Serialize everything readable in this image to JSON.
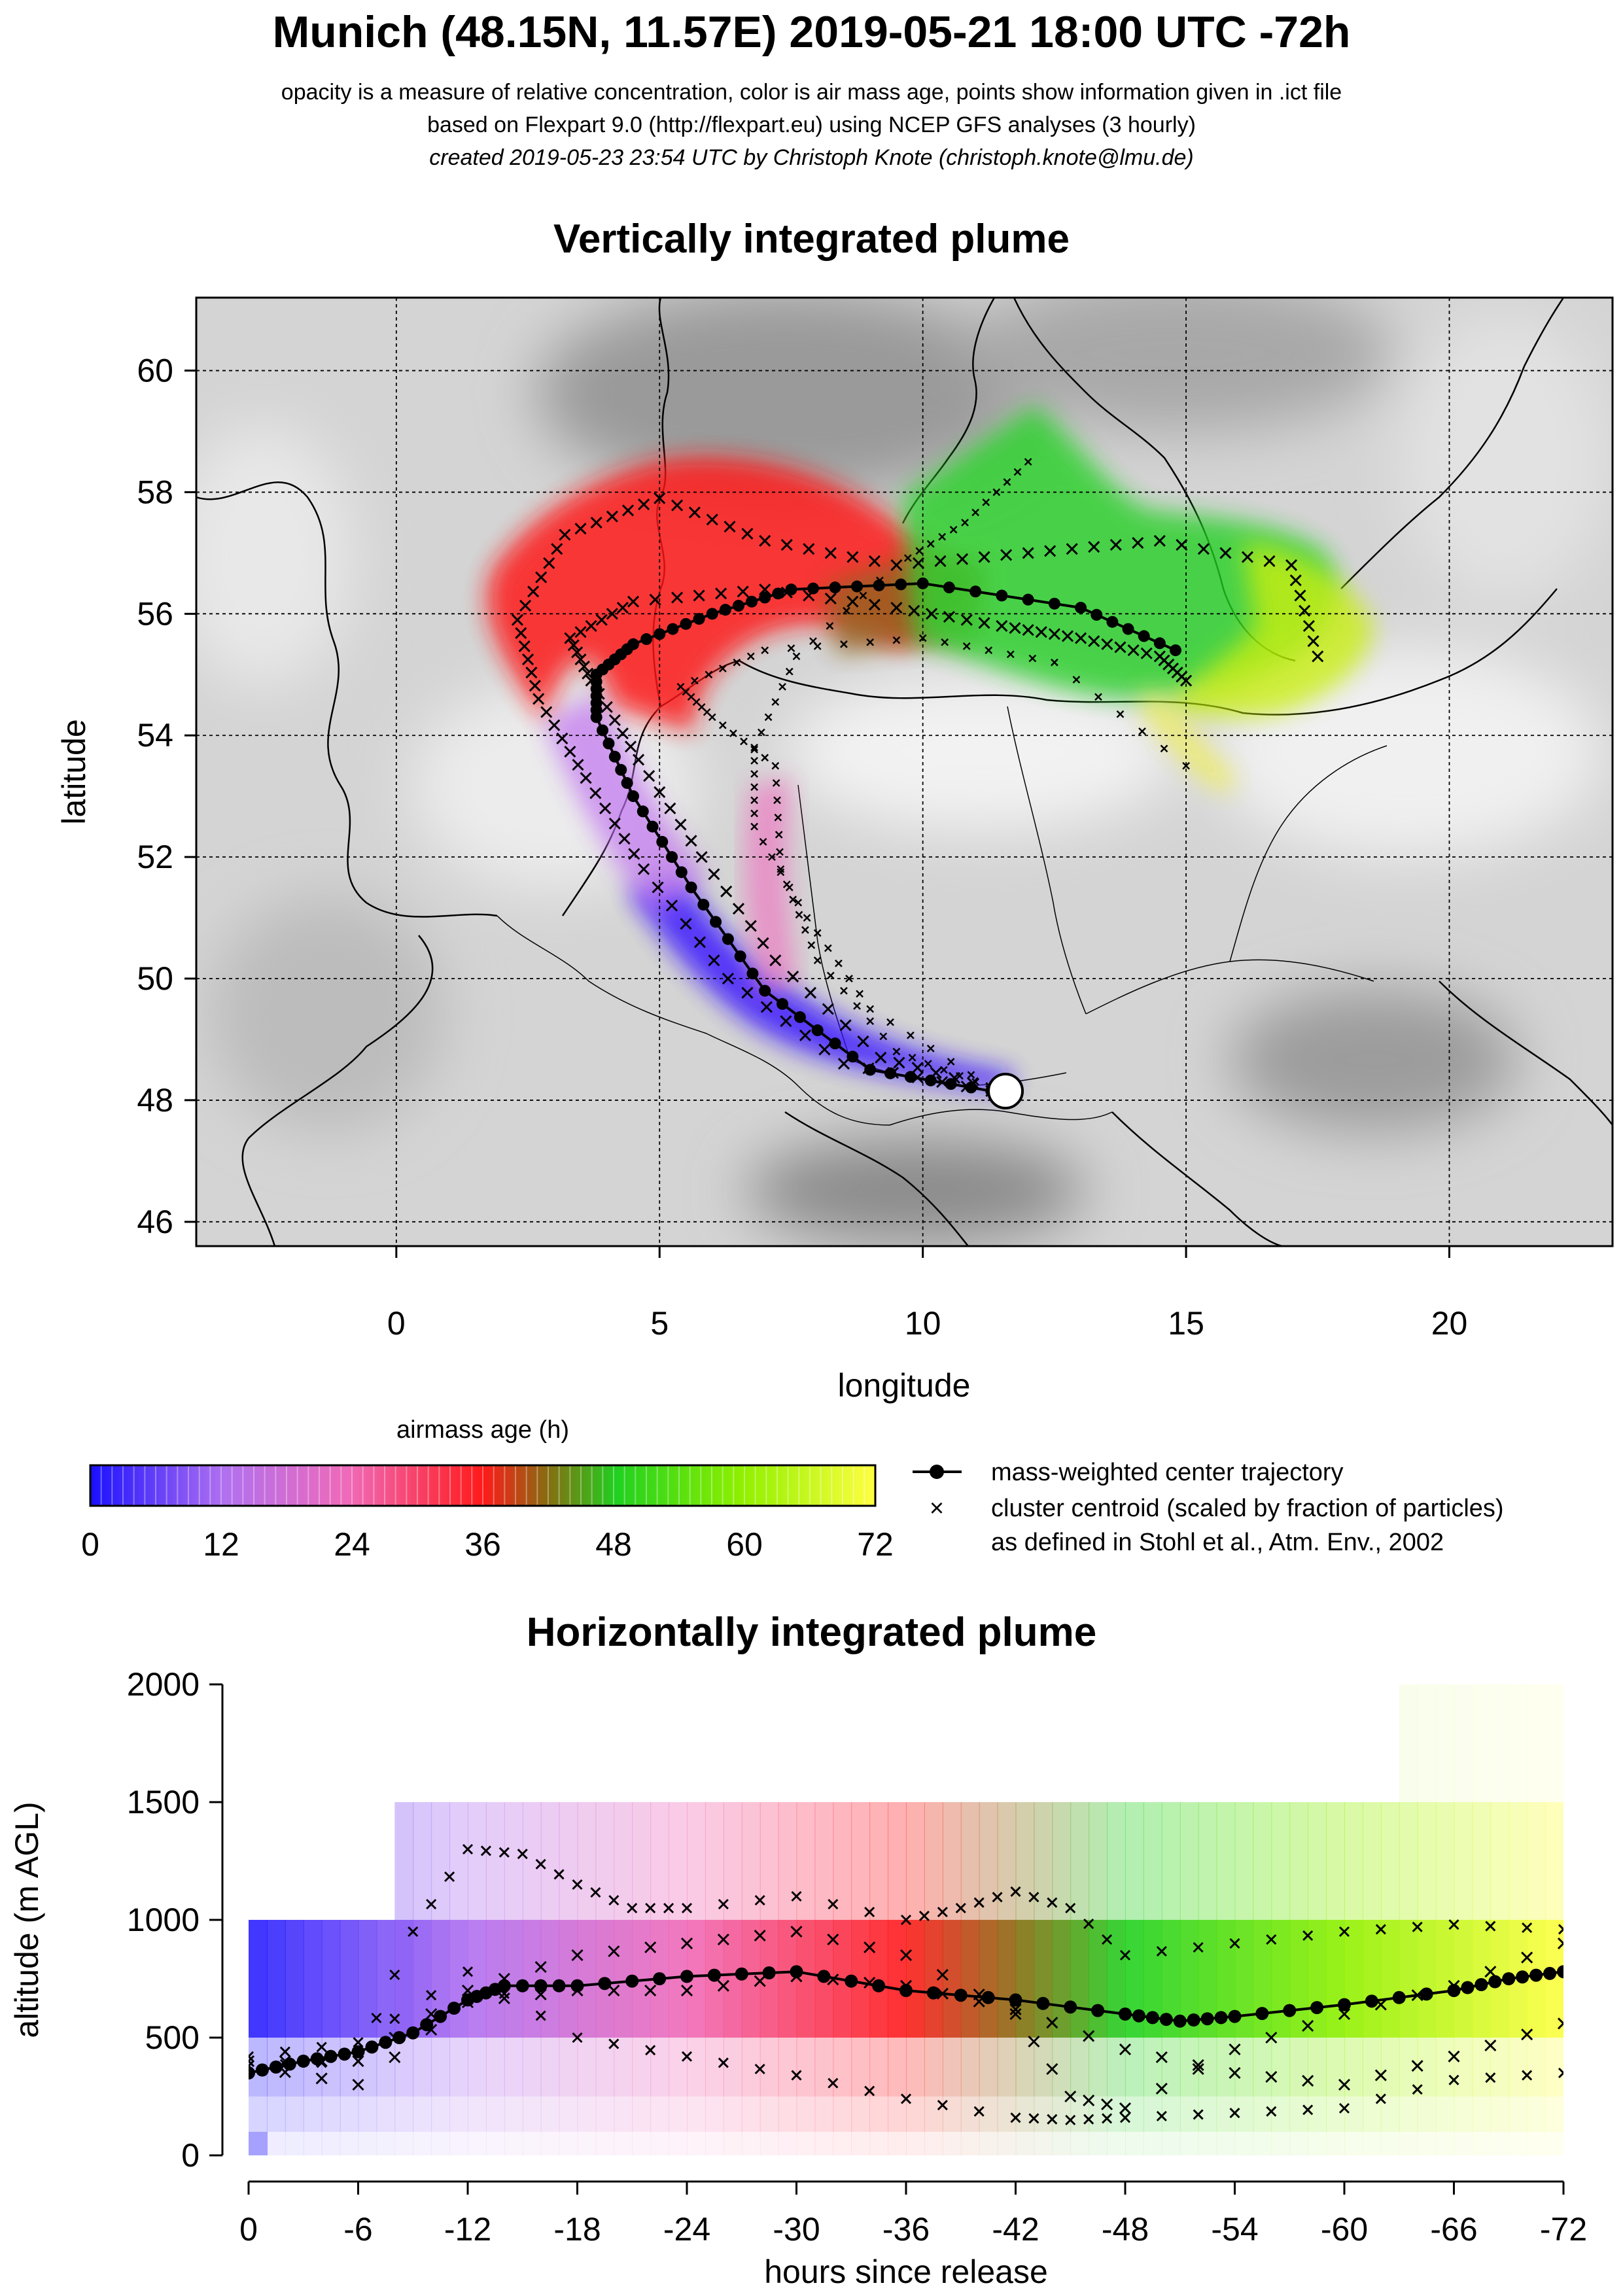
{
  "header": {
    "title": "Munich (48.15N, 11.57E) 2019-05-21 18:00 UTC -72h",
    "line1": "opacity is a measure of relative concentration, color is air mass age, points show information given in .ict file",
    "line2": "based on Flexpart 9.0 (http://flexpart.eu) using NCEP GFS analyses (3 hourly)",
    "line3": "created 2019-05-23 23:54 UTC by Christoph Knote (christoph.knote@lmu.de)"
  },
  "legend": {
    "colorbar_title": "airmass age (h)",
    "colorbar_ticks": [
      "0",
      "12",
      "24",
      "36",
      "48",
      "60",
      "72"
    ],
    "center_label": "mass-weighted center trajectory",
    "cluster_label1": "cluster centroid (scaled by fraction of particles)",
    "cluster_label2": "as defined in Stohl et al., Atm. Env., 2002"
  },
  "colors": {
    "age_0": "#1a10ff",
    "age_12": "#b070f0",
    "age_24": "#f06ab8",
    "age_36": "#ff1a1a",
    "age_48": "#20d020",
    "age_60": "#90f000",
    "age_72": "#ffff40"
  },
  "chart_data": [
    {
      "type": "scatter",
      "title": "Vertically integrated plume",
      "xlabel": "longitude",
      "ylabel": "latitude",
      "xlim": [
        -3.8,
        23.1
      ],
      "ylim": [
        45.6,
        61.2
      ],
      "x_ticks": [
        "0",
        "5",
        "10",
        "15",
        "20"
      ],
      "y_ticks": [
        "46",
        "48",
        "50",
        "52",
        "54",
        "56",
        "58",
        "60"
      ],
      "grid": true,
      "release_point": {
        "lon": 11.57,
        "lat": 48.15
      },
      "center_trajectory": {
        "name": "mass-weighted center trajectory",
        "age_h": [
          0,
          6,
          12,
          18,
          24,
          30,
          36,
          42,
          48,
          54,
          60,
          66,
          72
        ],
        "lon": [
          11.3,
          9.0,
          7.0,
          5.6,
          4.5,
          3.8,
          3.8,
          4.5,
          6.0,
          7.5,
          10.0,
          13.0,
          14.8
        ],
        "lat": [
          48.15,
          48.5,
          49.8,
          51.5,
          53.0,
          54.3,
          55.0,
          55.5,
          56.0,
          56.4,
          56.5,
          56.1,
          55.4
        ]
      },
      "cluster_tracks": [
        {
          "lon": [
            11.3,
            8.5,
            6.3,
            4.7,
            3.6,
            2.7,
            2.3,
            3.2,
            5.0,
            7.0,
            9.5,
            12.0,
            14.5,
            17.0,
            17.5
          ],
          "lat": [
            48.15,
            48.6,
            50.0,
            51.8,
            53.3,
            54.6,
            55.9,
            57.3,
            57.9,
            57.2,
            56.8,
            57.0,
            57.2,
            56.8,
            55.3
          ]
        },
        {
          "lon": [
            11.3,
            9.2,
            7.2,
            5.8,
            4.6,
            3.7,
            3.3,
            4.5,
            7.0,
            9.5,
            11.5,
            13.0,
            14.5,
            15.0
          ],
          "lat": [
            48.2,
            48.7,
            50.3,
            52.0,
            53.6,
            54.9,
            55.6,
            56.2,
            56.4,
            56.1,
            55.8,
            55.6,
            55.3,
            54.9
          ]
        },
        {
          "lon": [
            11.3,
            9.5,
            8.0,
            7.3,
            7.2,
            6.0,
            5.4,
            7.0,
            10.0,
            12.5,
            15.0
          ],
          "lat": [
            48.2,
            48.8,
            50.3,
            51.8,
            53.5,
            54.3,
            54.8,
            55.4,
            55.6,
            55.2,
            53.5
          ]
        },
        {
          "lon": [
            11.3,
            9.0,
            7.8,
            6.8,
            6.8,
            7.6,
            9.5,
            10.8,
            12.0
          ],
          "lat": [
            48.2,
            49.5,
            51.0,
            52.5,
            53.8,
            55.3,
            56.8,
            57.5,
            58.5
          ]
        }
      ]
    },
    {
      "type": "scatter",
      "title": "Horizontally integrated plume",
      "xlabel": "hours since release",
      "ylabel": "altitude (m AGL)",
      "xlim": [
        0,
        -72
      ],
      "ylim": [
        0,
        2000
      ],
      "x_ticks": [
        "0",
        "-6",
        "-12",
        "-18",
        "-24",
        "-30",
        "-36",
        "-42",
        "-48",
        "-54",
        "-60",
        "-66",
        "-72"
      ],
      "y_ticks": [
        "0",
        "500",
        "1000",
        "1500",
        "2000"
      ],
      "center_trajectory": {
        "name": "mass-weighted center trajectory",
        "hours": [
          0,
          -3,
          -6,
          -9,
          -12,
          -14,
          -18,
          -24,
          -30,
          -36,
          -42,
          -48,
          -51,
          -54,
          -60,
          -66,
          -69,
          -72
        ],
        "altitude_m": [
          350,
          400,
          440,
          520,
          660,
          720,
          720,
          760,
          780,
          700,
          660,
          600,
          570,
          590,
          640,
          700,
          750,
          780
        ]
      },
      "cluster_tracks": [
        {
          "hours": [
            0,
            -6,
            -9,
            -12,
            -15,
            -18,
            -21,
            -24,
            -30,
            -36,
            -39,
            -42,
            -45,
            -48,
            -54,
            -60,
            -66,
            -72
          ],
          "altitude_m": [
            380,
            400,
            950,
            1300,
            1280,
            1150,
            1050,
            1050,
            1100,
            1000,
            1050,
            1120,
            1050,
            850,
            900,
            950,
            980,
            960
          ]
        },
        {
          "hours": [
            0,
            -6,
            -12,
            -18,
            -24,
            -30,
            -36,
            -42,
            -45,
            -48,
            -54,
            -60,
            -66,
            -72
          ],
          "altitude_m": [
            420,
            480,
            780,
            500,
            420,
            340,
            240,
            160,
            150,
            160,
            180,
            200,
            320,
            350
          ]
        },
        {
          "hours": [
            0,
            -6,
            -12,
            -18,
            -24,
            -30,
            -36,
            -42,
            -45,
            -48,
            -54,
            -60,
            -66,
            -72
          ],
          "altitude_m": [
            400,
            400,
            700,
            850,
            900,
            950,
            850,
            600,
            250,
            200,
            450,
            600,
            720,
            900
          ]
        },
        {
          "hours": [
            0,
            -6,
            -12,
            -18,
            -24,
            -30,
            -36,
            -42,
            -48,
            -54,
            -60,
            -66,
            -72
          ],
          "altitude_m": [
            380,
            300,
            650,
            700,
            700,
            760,
            720,
            620,
            450,
            350,
            300,
            420,
            560
          ]
        }
      ]
    }
  ]
}
